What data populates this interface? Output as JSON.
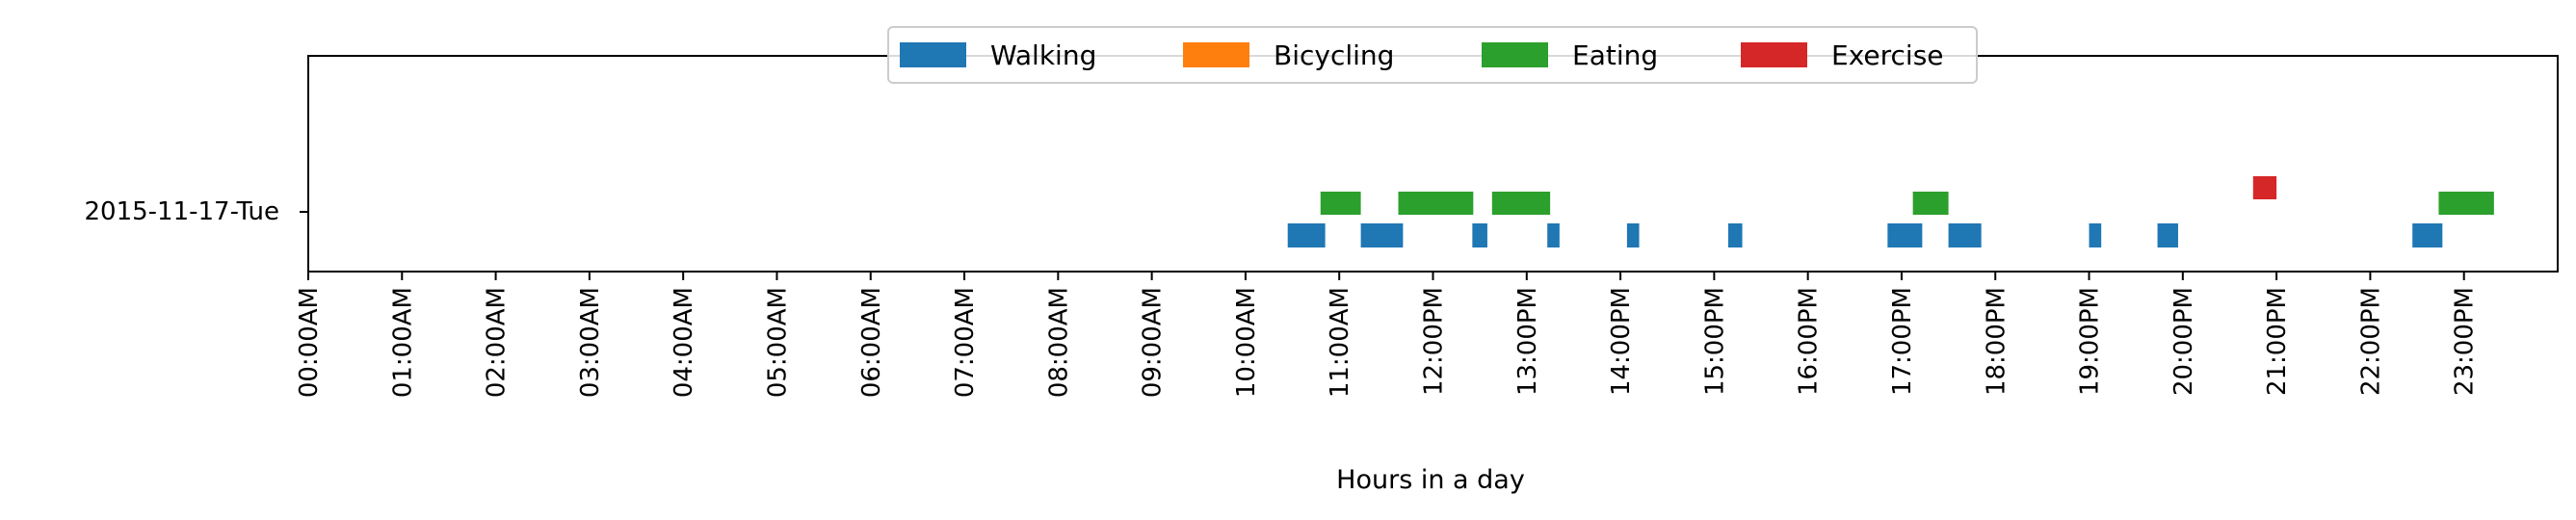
{
  "chart_data": {
    "type": "timeline",
    "title": "",
    "xlabel": "Hours in a day",
    "ylabel": "",
    "xlim": [
      0,
      24
    ],
    "grid": false,
    "legend_placement": "top-center",
    "row_label": "2015-11-17-Tue",
    "ticks": [
      "00:00AM",
      "01:00AM",
      "02:00AM",
      "03:00AM",
      "04:00AM",
      "05:00AM",
      "06:00AM",
      "07:00AM",
      "08:00AM",
      "09:00AM",
      "10:00AM",
      "11:00AM",
      "12:00PM",
      "13:00PM",
      "14:00PM",
      "15:00PM",
      "16:00PM",
      "17:00PM",
      "18:00PM",
      "19:00PM",
      "20:00PM",
      "21:00PM",
      "22:00PM",
      "23:00PM"
    ],
    "series": [
      {
        "name": "Walking",
        "color": "#1f77b4",
        "segments": [
          [
            10.45,
            10.85
          ],
          [
            11.23,
            11.68
          ],
          [
            12.42,
            12.58
          ],
          [
            13.22,
            13.35
          ],
          [
            14.07,
            14.2
          ],
          [
            15.15,
            15.3
          ],
          [
            16.85,
            17.22
          ],
          [
            17.5,
            17.85
          ],
          [
            19.0,
            19.13
          ],
          [
            19.73,
            19.95
          ],
          [
            22.45,
            22.77
          ]
        ]
      },
      {
        "name": "Bicycling",
        "color": "#ff7f0e",
        "segments": []
      },
      {
        "name": "Eating",
        "color": "#2ca02c",
        "segments": [
          [
            10.8,
            11.23
          ],
          [
            11.63,
            12.43
          ],
          [
            12.63,
            13.25
          ],
          [
            17.12,
            17.5
          ],
          [
            22.73,
            23.32
          ]
        ]
      },
      {
        "name": "Exercise",
        "color": "#d62728",
        "segments": [
          [
            20.75,
            21.0
          ]
        ]
      }
    ]
  }
}
